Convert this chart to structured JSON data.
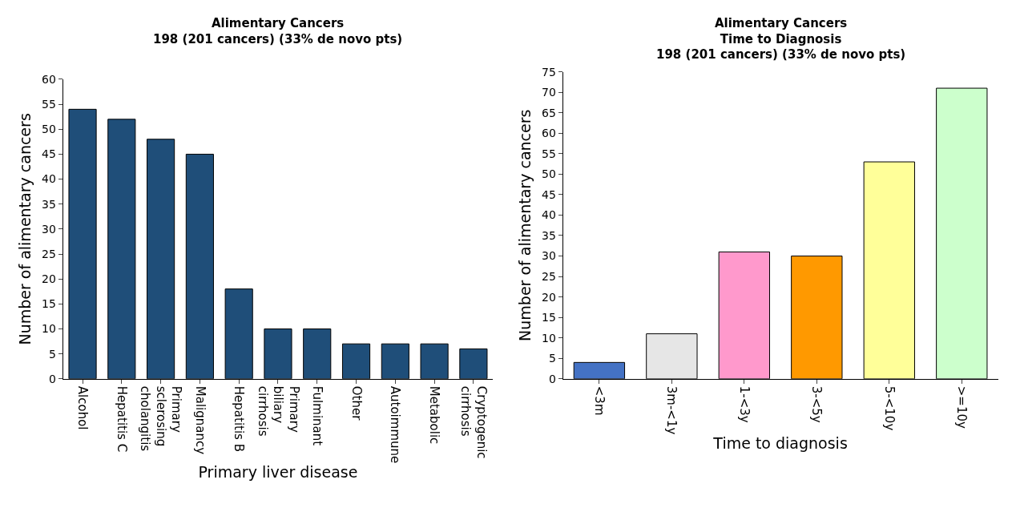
{
  "chart_data": [
    {
      "type": "bar",
      "title": "Alimentary Cancers\n198 (201 cancers) (33% de novo pts)",
      "xlabel": "Primary liver disease",
      "ylabel": "Number of alimentary cancers",
      "categories": [
        "Alcohol",
        "Hepatitis C",
        "Primary sclerosing cholangitis",
        "Malignancy",
        "Hepatitis B",
        "Primary biliary cirrhosis",
        "Fulminant",
        "Other",
        "Autoimmune",
        "Metabolic",
        "Cryptogenic cirrhosis"
      ],
      "values": [
        54,
        52,
        48,
        45,
        18,
        10,
        10,
        7,
        7,
        7,
        6
      ],
      "color": "#1f4e79",
      "ylim": [
        0,
        60
      ],
      "yticks": [
        0,
        5,
        10,
        15,
        20,
        25,
        30,
        35,
        40,
        45,
        50,
        55,
        60
      ]
    },
    {
      "type": "bar",
      "title": "Alimentary Cancers\nTime to Diagnosis\n198 (201 cancers) (33% de novo pts)",
      "xlabel": "Time to diagnosis",
      "ylabel": "Number of alimentary cancers",
      "categories": [
        "<3m",
        "3m-<1y",
        "1-<3y",
        "3-<5y",
        "5-<10y",
        ">=10y"
      ],
      "values": [
        4,
        11,
        31,
        30,
        53,
        71
      ],
      "colors": [
        "#4472c4",
        "#e6e6e6",
        "#ff99cc",
        "#ff9900",
        "#ffff99",
        "#ccffcc"
      ],
      "ylim": [
        0,
        75
      ],
      "yticks": [
        0,
        5,
        10,
        15,
        20,
        25,
        30,
        35,
        40,
        45,
        50,
        55,
        60,
        65,
        70,
        75
      ]
    }
  ]
}
